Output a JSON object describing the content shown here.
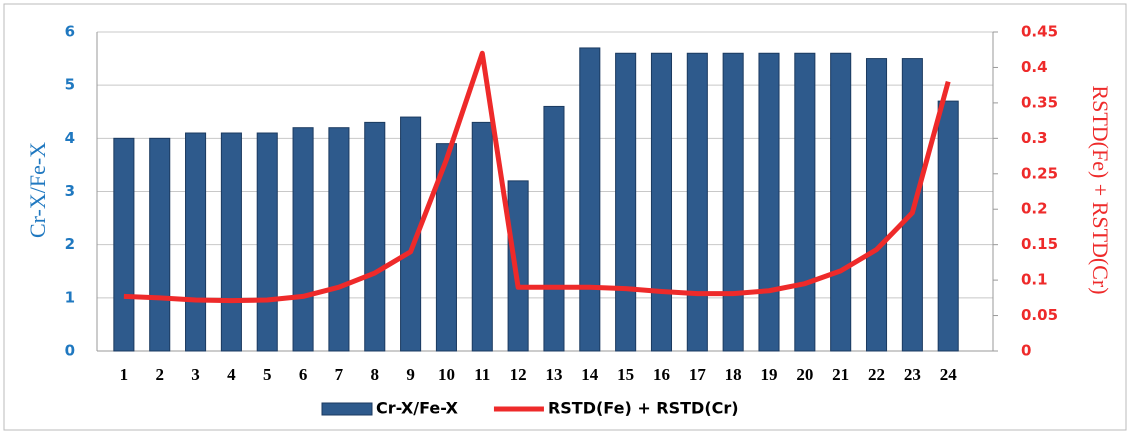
{
  "chart_data": {
    "type": "bar-line",
    "categories": [
      "1",
      "2",
      "3",
      "4",
      "5",
      "6",
      "7",
      "8",
      "9",
      "10",
      "11",
      "12",
      "13",
      "14",
      "15",
      "16",
      "17",
      "18",
      "19",
      "20",
      "21",
      "22",
      "23",
      "24"
    ],
    "series": [
      {
        "name": "Cr-X/Fe-X",
        "type": "bar",
        "color": "#2e5a8c",
        "values": [
          4,
          4,
          4.1,
          4.1,
          4.1,
          4.2,
          4.2,
          4.3,
          4.4,
          3.9,
          4.3,
          3.2,
          4.6,
          5.7,
          5.6,
          5.6,
          5.6,
          5.6,
          5.6,
          5.6,
          5.6,
          5.5,
          5.5,
          4.7
        ]
      },
      {
        "name": "RSTD(Fe) + RSTD(Cr)",
        "type": "line",
        "axis": "y2",
        "color": "#ee2a2a",
        "values": [
          0.077,
          0.075,
          0.072,
          0.071,
          0.072,
          0.077,
          0.09,
          0.11,
          0.14,
          0.27,
          0.42,
          0.09,
          0.09,
          0.09,
          0.088,
          0.084,
          0.081,
          0.081,
          0.085,
          0.095,
          0.113,
          0.143,
          0.195,
          0.38
        ]
      }
    ],
    "ylabel": "Cr-X/Fe-X",
    "y2label": "RSTD(Fe) + RSTD(Cr)",
    "ylim": [
      0,
      6
    ],
    "yticks": [
      0,
      1,
      2,
      3,
      4,
      5,
      6
    ],
    "y2lim": [
      0,
      0.45
    ],
    "y2ticks": [
      0,
      0.05,
      0.1,
      0.15,
      0.2,
      0.25,
      0.3,
      0.35,
      0.4,
      0.45
    ],
    "grid": true,
    "legend": "bottom"
  }
}
